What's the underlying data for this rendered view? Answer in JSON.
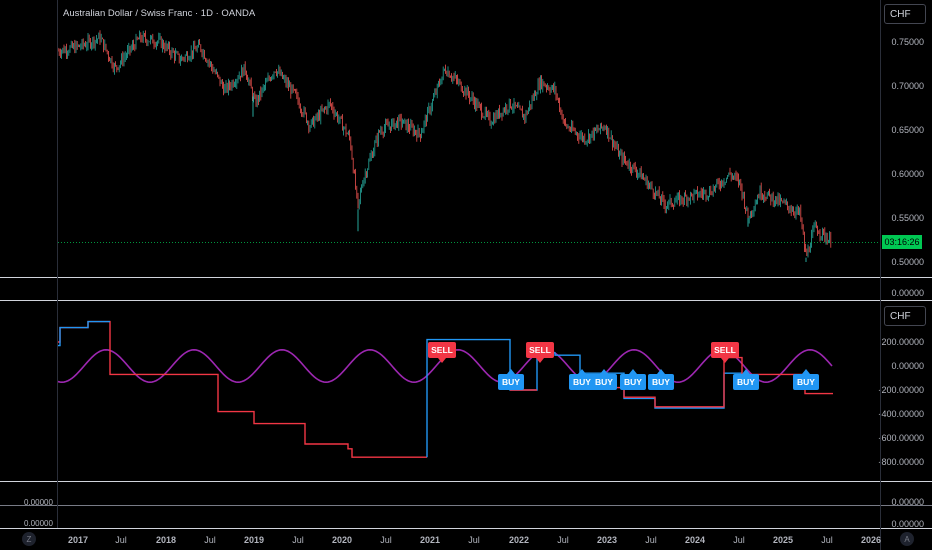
{
  "header": {
    "title": "Australian Dollar / Swiss Franc · 1D · OANDA"
  },
  "main_pane": {
    "currency": "CHF",
    "price_ticks": [
      "0.75000",
      "0.70000",
      "0.65000",
      "0.60000",
      "0.55000",
      "0.50000"
    ],
    "bottom_tick": "0.00000",
    "countdown": "03:16:26",
    "current_price": 0.522
  },
  "osc_pane": {
    "currency": "CHF",
    "ticks": [
      "200.00000",
      "0.00000",
      "-200.00000",
      "-400.00000",
      "-600.00000",
      "-800.00000"
    ],
    "signals": [
      {
        "label": "SELL",
        "type": "sell"
      },
      {
        "label": "BUY",
        "type": "buy"
      },
      {
        "label": "SELL",
        "type": "sell"
      },
      {
        "label": "BUY",
        "type": "buy"
      },
      {
        "label": "BUY",
        "type": "buy"
      },
      {
        "label": "BUY",
        "type": "buy"
      },
      {
        "label": "BUY",
        "type": "buy"
      },
      {
        "label": "SELL",
        "type": "sell"
      },
      {
        "label": "BUY",
        "type": "buy"
      },
      {
        "label": "BUY",
        "type": "buy"
      }
    ]
  },
  "lower_panes": {
    "ticks_left": [
      "0.00000",
      "0.00000"
    ],
    "ticks_right": [
      "0.00000",
      "0.00000"
    ]
  },
  "time_axis": [
    "2017",
    "Jul",
    "2018",
    "Jul",
    "2019",
    "Jul",
    "2020",
    "Jul",
    "2021",
    "Jul",
    "2022",
    "Jul",
    "2023",
    "Jul",
    "2024",
    "Jul",
    "2025",
    "Jul",
    "2026"
  ],
  "corner_buttons": {
    "left": "Z",
    "right": "A"
  },
  "colors": {
    "up": "#26a69a",
    "down": "#ef5350",
    "wave": "#9c27b0",
    "step_red": "#f23645",
    "step_blue": "#2196f3",
    "price_line": "#00c853"
  }
}
